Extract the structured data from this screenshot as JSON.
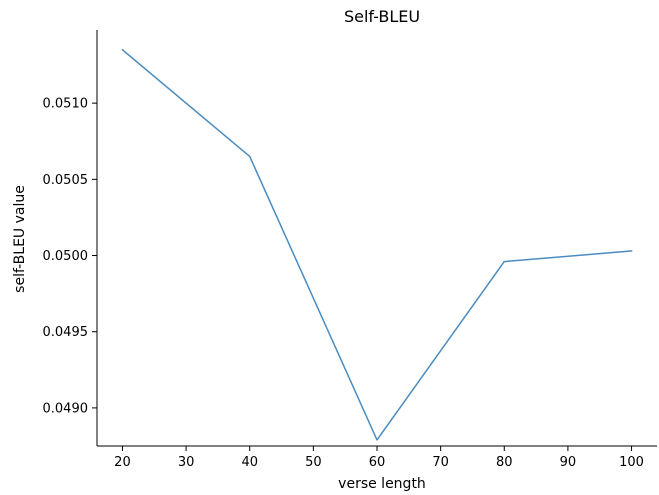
{
  "chart_data": {
    "type": "line",
    "title": "Self-BLEU",
    "xlabel": "verse length",
    "ylabel": "self-BLEU value",
    "xlim": [
      16,
      104
    ],
    "ylim": [
      0.04875,
      0.05148
    ],
    "xticks": [
      20,
      30,
      40,
      50,
      60,
      70,
      80,
      90,
      100
    ],
    "yticks": [
      0.049,
      0.0495,
      0.05,
      0.0505,
      0.051
    ],
    "ytick_labels": [
      "0.0490",
      "0.0495",
      "0.0500",
      "0.0505",
      "0.0510"
    ],
    "grid": false,
    "series": [
      {
        "x": [
          20,
          40,
          60,
          80,
          100
        ],
        "values": [
          0.05135,
          0.05065,
          0.04879,
          0.04996,
          0.05003
        ],
        "color": "#4a8cc0"
      }
    ]
  }
}
